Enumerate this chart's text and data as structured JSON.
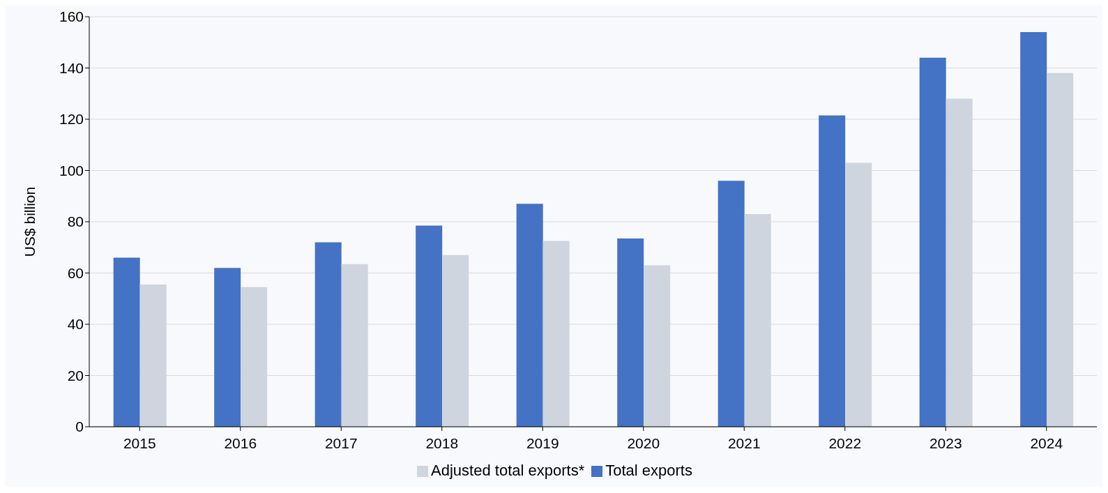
{
  "chart_data": {
    "type": "bar",
    "ylabel": "US$ billion",
    "categories": [
      "2015",
      "2016",
      "2017",
      "2018",
      "2019",
      "2020",
      "2021",
      "2022",
      "2023",
      "2024"
    ],
    "series": [
      {
        "name": "Total exports",
        "color": "#4472c4",
        "values": [
          66,
          62,
          72,
          78.5,
          87,
          73.5,
          96,
          121.5,
          144,
          154
        ]
      },
      {
        "name": "Adjusted total exports*",
        "color": "#cfd5de",
        "values": [
          55.5,
          54.5,
          63.5,
          67,
          72.5,
          63,
          83,
          103,
          128,
          138
        ]
      }
    ],
    "ylim": [
      0,
      160
    ],
    "yticks": [
      0,
      20,
      40,
      60,
      80,
      100,
      120,
      140,
      160
    ],
    "grid": "y",
    "legend": "bottom"
  }
}
